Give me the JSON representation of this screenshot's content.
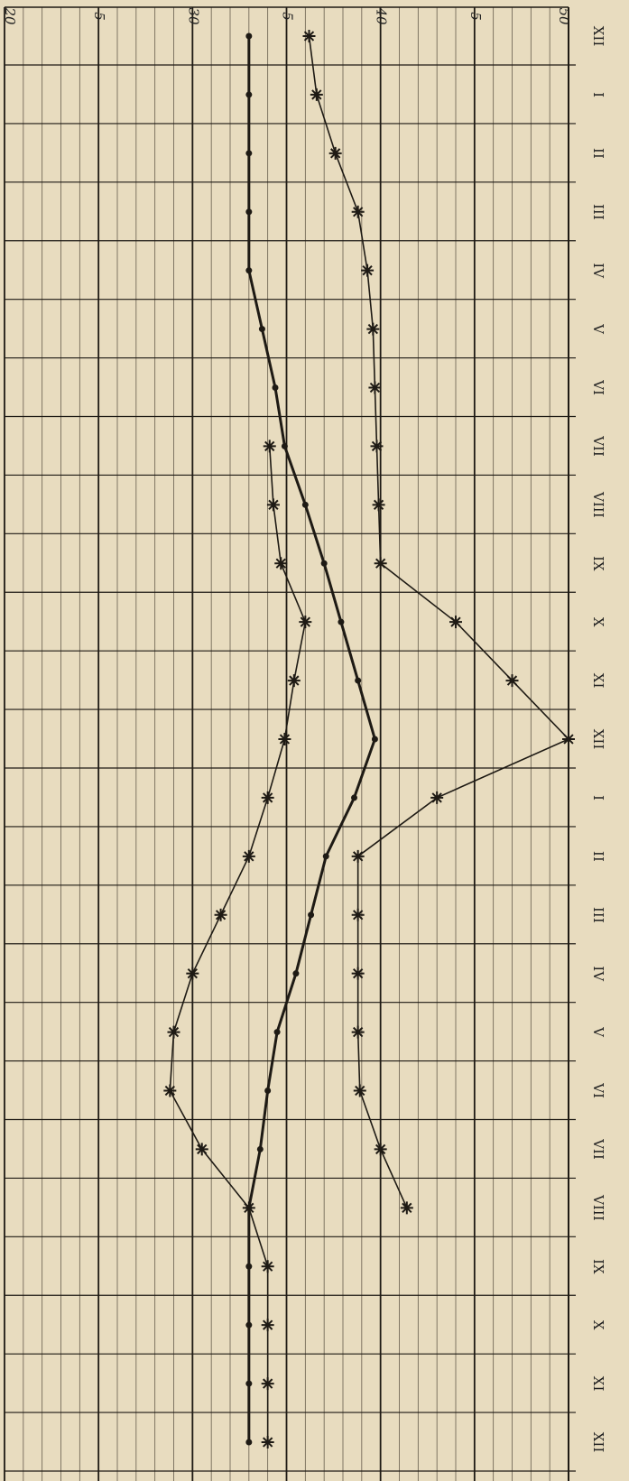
{
  "chart_data": {
    "type": "line",
    "orientation": "vertical-categories",
    "categories": [
      "XII",
      "I",
      "II",
      "III",
      "IV",
      "V",
      "VI",
      "VII",
      "VIII",
      "IX",
      "X",
      "XI",
      "XII",
      "I",
      "II",
      "III",
      "IV",
      "V",
      "VI",
      "VII",
      "VIII",
      "IX",
      "X",
      "XI",
      "XII"
    ],
    "ylim": [
      20,
      50
    ],
    "yticks": [
      20,
      {
        "value": 25,
        "label": "5"
      },
      30,
      {
        "value": 35,
        "label": "5"
      },
      40,
      {
        "value": 45,
        "label": "5"
      },
      50
    ],
    "grid": true,
    "series": [
      {
        "color": "#1e1a14",
        "marker": "dot",
        "values": [
          33,
          33,
          33,
          33,
          33,
          33.7,
          34.4,
          34.9,
          36,
          37,
          37.9,
          38.8,
          39.7,
          38.6,
          37.1,
          36.3,
          35.5,
          34.5,
          34,
          33.6,
          33,
          33,
          33,
          33,
          33
        ]
      },
      {
        "color": "#1e1a14",
        "marker": "star",
        "values": [
          null,
          null,
          null,
          null,
          null,
          null,
          null,
          34.1,
          34.3,
          34.7,
          36,
          35.4,
          34.9,
          34,
          33,
          31.5,
          30,
          29,
          28.8,
          30.5,
          33,
          34,
          34,
          34,
          34
        ]
      },
      {
        "color": "#1e1a14",
        "marker": "star",
        "values": [
          36.2,
          36.6,
          37.6,
          38.8,
          39.3,
          39.6,
          39.7,
          39.8,
          39.9,
          40,
          44,
          47,
          50,
          43,
          38.8,
          38.8,
          38.8,
          38.8,
          38.9,
          40,
          41.4,
          null,
          null,
          null,
          null
        ]
      }
    ]
  }
}
